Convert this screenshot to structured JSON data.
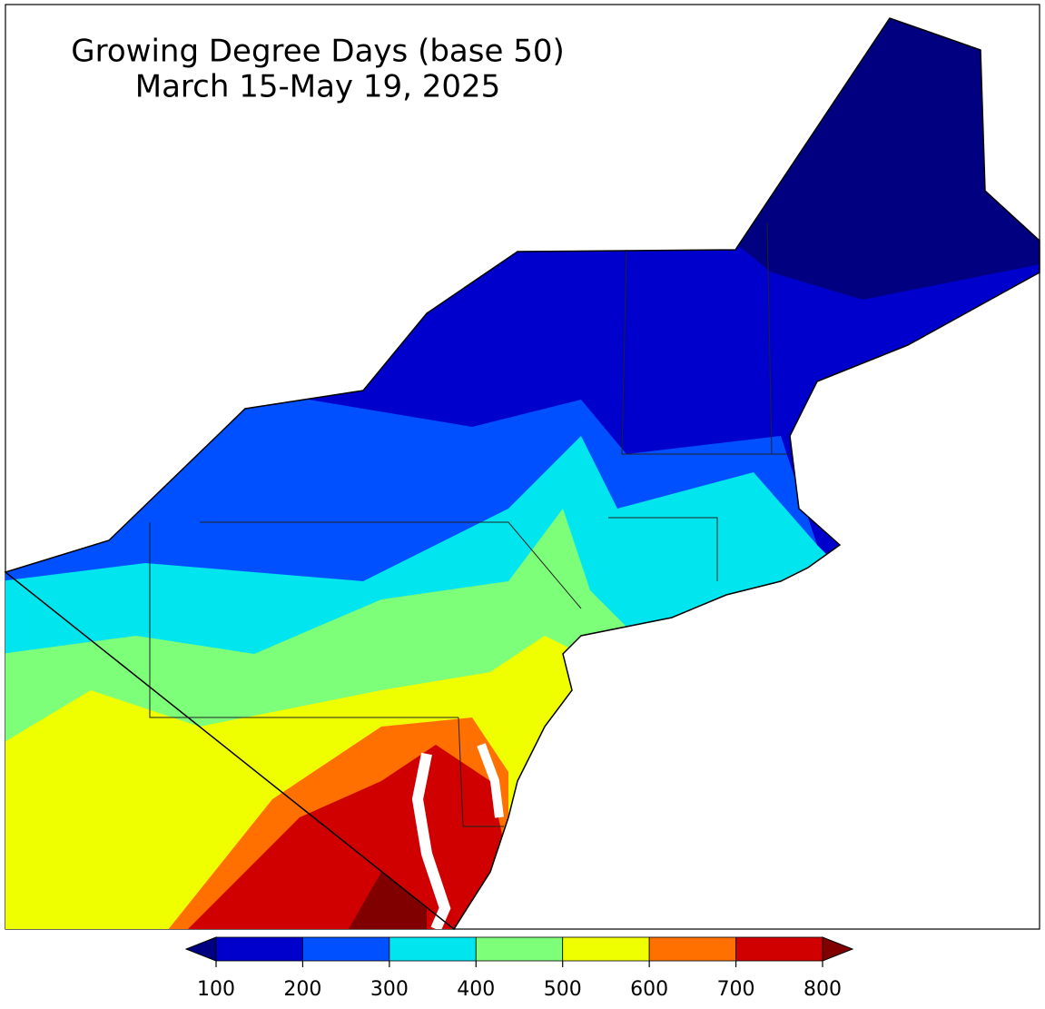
{
  "map": {
    "title": "Growing Degree Days (base 50)",
    "subtitle": "March 15-May 19, 2025",
    "colorbar": {
      "ticks": [
        100,
        200,
        300,
        400,
        500,
        600,
        700,
        800
      ],
      "colors": [
        "#0000cd",
        "#0050ff",
        "#00e5ee",
        "#7dff7a",
        "#f0ff00",
        "#ff7000",
        "#d00000"
      ],
      "under_color": "#000080",
      "over_color": "#800000"
    }
  }
}
